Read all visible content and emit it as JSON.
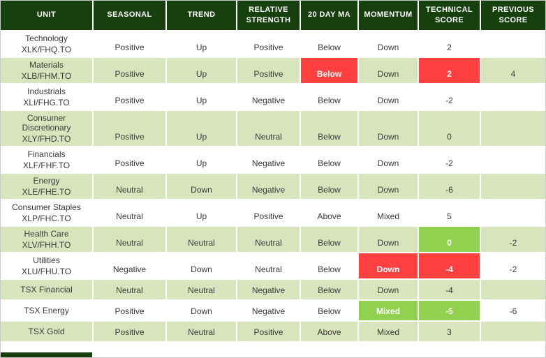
{
  "colors": {
    "header_bg": "#17400f",
    "header_text": "#ffffff",
    "row_stripe": "#d8e4bc",
    "highlight_red": "#ff4040",
    "highlight_green": "#92d050",
    "body_text": "#3a3a3a"
  },
  "table": {
    "headers": [
      "UNIT",
      "SEASONAL",
      "TREND",
      "RELATIVE STRENGTH",
      "20 DAY MA",
      "MOMENTUM",
      "TECHNICAL SCORE",
      "PREVIOUS SCORE"
    ],
    "rows": [
      {
        "unit": "Technology",
        "ticker": "XLK/FHQ.TO",
        "seasonal": "Positive",
        "trend": "Up",
        "relative_strength": "Positive",
        "ma20": "Below",
        "momentum": "Down",
        "technical_score": "2",
        "previous_score": "",
        "highlights": {}
      },
      {
        "unit": "Materials",
        "ticker": "XLB/FHM.TO",
        "seasonal": "Positive",
        "trend": "Up",
        "relative_strength": "Positive",
        "ma20": "Below",
        "momentum": "Down",
        "technical_score": "2",
        "previous_score": "4",
        "highlights": {
          "ma20": "red",
          "technical_score": "red"
        }
      },
      {
        "unit": "Industrials",
        "ticker": "XLI/FHG.TO",
        "seasonal": "Positive",
        "trend": "Up",
        "relative_strength": "Negative",
        "ma20": "Below",
        "momentum": "Down",
        "technical_score": "-2",
        "previous_score": "",
        "highlights": {}
      },
      {
        "unit": "Consumer Discretionary",
        "ticker": "XLY/FHD.TO",
        "seasonal": "Positive",
        "trend": "Up",
        "relative_strength": "Neutral",
        "ma20": "Below",
        "momentum": "Down",
        "technical_score": "0",
        "previous_score": "",
        "highlights": {}
      },
      {
        "unit": "Financials",
        "ticker": "XLF/FHF.TO",
        "seasonal": "Positive",
        "trend": "Up",
        "relative_strength": "Negative",
        "ma20": "Below",
        "momentum": "Down",
        "technical_score": "-2",
        "previous_score": "",
        "highlights": {}
      },
      {
        "unit": "Energy",
        "ticker": "XLE/FHE.TO",
        "seasonal": "Neutral",
        "trend": "Down",
        "relative_strength": "Negative",
        "ma20": "Below",
        "momentum": "Down",
        "technical_score": "-6",
        "previous_score": "",
        "highlights": {}
      },
      {
        "unit": "Consumer Staples",
        "ticker": "XLP/FHC.TO",
        "seasonal": "Neutral",
        "trend": "Up",
        "relative_strength": "Positive",
        "ma20": "Above",
        "momentum": "Mixed",
        "technical_score": "5",
        "previous_score": "",
        "highlights": {}
      },
      {
        "unit": "Health Care",
        "ticker": "XLV/FHH.TO",
        "seasonal": "Neutral",
        "trend": "Neutral",
        "relative_strength": "Neutral",
        "ma20": "Below",
        "momentum": "Down",
        "technical_score": "0",
        "previous_score": "-2",
        "highlights": {
          "technical_score": "green"
        }
      },
      {
        "unit": "Utilities",
        "ticker": "XLU/FHU.TO",
        "seasonal": "Negative",
        "trend": "Down",
        "relative_strength": "Neutral",
        "ma20": "Below",
        "momentum": "Down",
        "technical_score": "-4",
        "previous_score": "-2",
        "highlights": {
          "momentum": "red",
          "technical_score": "red"
        }
      },
      {
        "unit": "TSX Financial",
        "ticker": "",
        "seasonal": "Neutral",
        "trend": "Neutral",
        "relative_strength": "Negative",
        "ma20": "Below",
        "momentum": "Down",
        "technical_score": "-4",
        "previous_score": "",
        "highlights": {}
      },
      {
        "unit": "TSX Energy",
        "ticker": "",
        "seasonal": "Positive",
        "trend": "Down",
        "relative_strength": "Negative",
        "ma20": "Below",
        "momentum": "Mixed",
        "technical_score": "-5",
        "previous_score": "-6",
        "highlights": {
          "momentum": "green",
          "technical_score": "green"
        }
      },
      {
        "unit": "TSX Gold",
        "ticker": "",
        "seasonal": "Positive",
        "trend": "Neutral",
        "relative_strength": "Positive",
        "ma20": "Above",
        "momentum": "Mixed",
        "technical_score": "3",
        "previous_score": "",
        "highlights": {}
      }
    ]
  },
  "chart_data": {
    "type": "table",
    "columns": [
      "UNIT",
      "SEASONAL",
      "TREND",
      "RELATIVE STRENGTH",
      "20 DAY MA",
      "MOMENTUM",
      "TECHNICAL SCORE",
      "PREVIOUS SCORE"
    ],
    "rows": [
      [
        "Technology XLK/FHQ.TO",
        "Positive",
        "Up",
        "Positive",
        "Below",
        "Down",
        "2",
        ""
      ],
      [
        "Materials XLB/FHM.TO",
        "Positive",
        "Up",
        "Positive",
        "Below",
        "Down",
        "2",
        "4"
      ],
      [
        "Industrials XLI/FHG.TO",
        "Positive",
        "Up",
        "Negative",
        "Below",
        "Down",
        "-2",
        ""
      ],
      [
        "Consumer Discretionary XLY/FHD.TO",
        "Positive",
        "Up",
        "Neutral",
        "Below",
        "Down",
        "0",
        ""
      ],
      [
        "Financials XLF/FHF.TO",
        "Positive",
        "Up",
        "Negative",
        "Below",
        "Down",
        "-2",
        ""
      ],
      [
        "Energy XLE/FHE.TO",
        "Neutral",
        "Down",
        "Negative",
        "Below",
        "Down",
        "-6",
        ""
      ],
      [
        "Consumer Staples XLP/FHC.TO",
        "Neutral",
        "Up",
        "Positive",
        "Above",
        "Mixed",
        "5",
        ""
      ],
      [
        "Health Care XLV/FHH.TO",
        "Neutral",
        "Neutral",
        "Neutral",
        "Below",
        "Down",
        "0",
        "-2"
      ],
      [
        "Utilities XLU/FHU.TO",
        "Negative",
        "Down",
        "Neutral",
        "Below",
        "Down",
        "-4",
        "-2"
      ],
      [
        "TSX Financial",
        "Neutral",
        "Neutral",
        "Negative",
        "Below",
        "Down",
        "-4",
        ""
      ],
      [
        "TSX Energy",
        "Positive",
        "Down",
        "Negative",
        "Below",
        "Mixed",
        "-5",
        "-6"
      ],
      [
        "TSX Gold",
        "Positive",
        "Neutral",
        "Positive",
        "Above",
        "Mixed",
        "3",
        ""
      ]
    ],
    "highlighted_cells": [
      {
        "row": "Materials XLB/FHM.TO",
        "column": "20 DAY MA",
        "color": "red"
      },
      {
        "row": "Materials XLB/FHM.TO",
        "column": "TECHNICAL SCORE",
        "color": "red"
      },
      {
        "row": "Health Care XLV/FHH.TO",
        "column": "TECHNICAL SCORE",
        "color": "green"
      },
      {
        "row": "Utilities XLU/FHU.TO",
        "column": "MOMENTUM",
        "color": "red"
      },
      {
        "row": "Utilities XLU/FHU.TO",
        "column": "TECHNICAL SCORE",
        "color": "red"
      },
      {
        "row": "TSX Energy",
        "column": "MOMENTUM",
        "color": "green"
      },
      {
        "row": "TSX Energy",
        "column": "TECHNICAL SCORE",
        "color": "green"
      }
    ]
  }
}
